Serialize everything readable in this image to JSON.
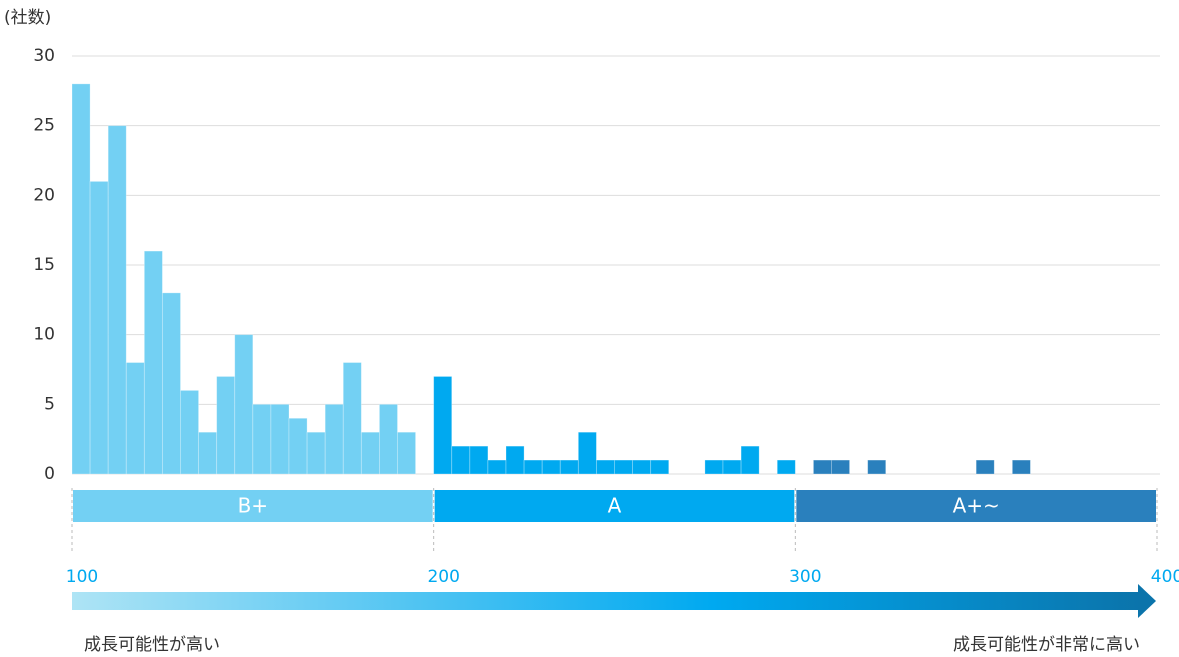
{
  "chart_data": {
    "type": "histogram",
    "y_label": "(社数)",
    "bins": [
      100,
      105,
      110,
      115,
      120,
      125,
      130,
      135,
      140,
      145,
      150,
      155,
      160,
      165,
      170,
      175,
      180,
      185,
      190,
      195,
      200,
      205,
      210,
      215,
      220,
      225,
      230,
      235,
      240,
      245,
      250,
      255,
      260,
      265,
      270,
      275,
      280,
      285,
      290,
      295,
      300,
      305,
      310,
      315,
      320,
      325,
      330,
      335,
      340,
      345,
      350,
      355,
      360,
      365,
      370,
      375,
      380,
      385,
      390,
      395,
      400
    ],
    "counts": [
      28,
      21,
      25,
      8,
      16,
      13,
      6,
      3,
      7,
      10,
      5,
      5,
      4,
      3,
      5,
      8,
      3,
      5,
      3,
      0,
      7,
      2,
      2,
      1,
      2,
      1,
      1,
      1,
      3,
      1,
      1,
      1,
      1,
      0,
      0,
      1,
      1,
      2,
      0,
      1,
      0,
      1,
      1,
      0,
      1,
      0,
      0,
      0,
      0,
      0,
      1,
      0,
      1,
      0,
      0,
      0,
      0,
      0,
      0,
      0
    ],
    "ranges": [
      {
        "label": "B+",
        "from": 100,
        "to": 200,
        "color": "#73d0f3"
      },
      {
        "label": "A",
        "from": 200,
        "to": 300,
        "color": "#00a9f0"
      },
      {
        "label": "A+~",
        "from": 300,
        "to": 400,
        "color": "#2a80bd"
      }
    ],
    "xlim": [
      100,
      400
    ],
    "xticks": [
      100,
      200,
      300,
      400
    ],
    "ylim": [
      0,
      30
    ],
    "yticks": [
      0,
      5,
      10,
      15,
      20,
      25,
      30
    ],
    "grid": true,
    "arrow_start_label": "成長可能性が高い",
    "arrow_end_label": "成長可能性が非常に高い"
  }
}
